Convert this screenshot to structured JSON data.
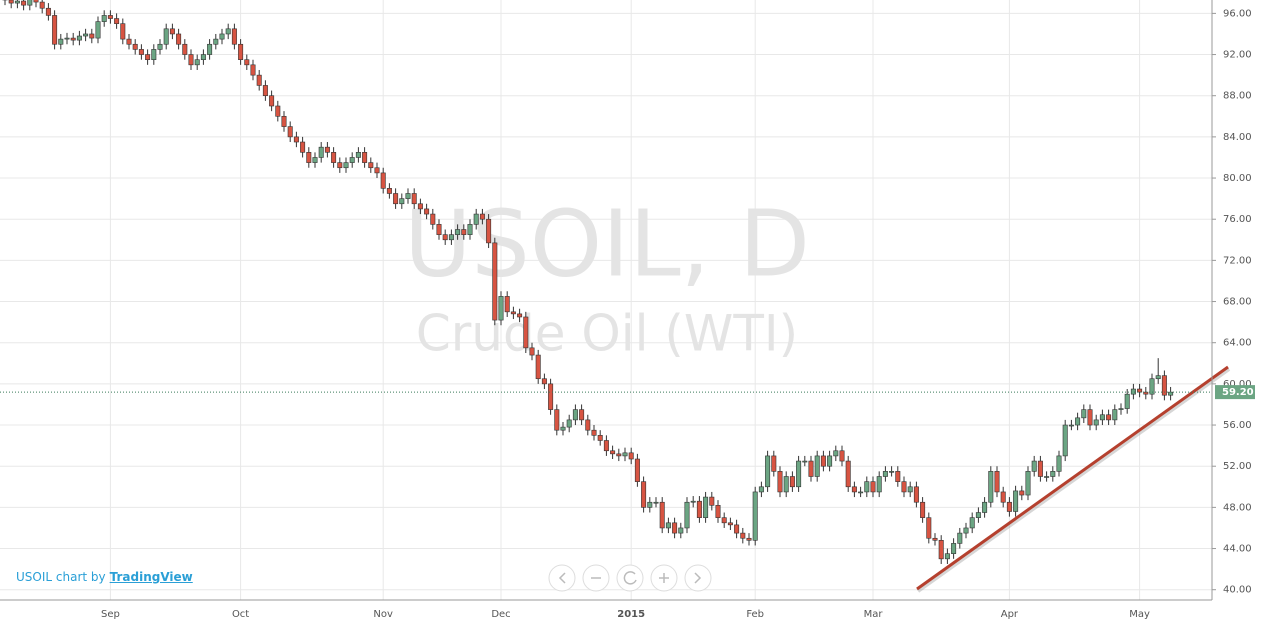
{
  "chart_data": {
    "type": "candlestick",
    "title": "USOIL, D",
    "subtitle": "Crude Oil (WTI)",
    "up_color": "#6ba583",
    "down_color": "#d75442",
    "grid": true,
    "ylim": [
      39,
      97.3
    ],
    "yticks": [
      {
        "value": 40,
        "label": "40.00"
      },
      {
        "value": 44,
        "label": "44.00"
      },
      {
        "value": 48,
        "label": "48.00"
      },
      {
        "value": 52,
        "label": "52.00"
      },
      {
        "value": 56,
        "label": "56.00"
      },
      {
        "value": 60,
        "label": "60.00"
      },
      {
        "value": 64,
        "label": "64.00"
      },
      {
        "value": 68,
        "label": "68.00"
      },
      {
        "value": 72,
        "label": "72.00"
      },
      {
        "value": 76,
        "label": "76.00"
      },
      {
        "value": 80,
        "label": "80.00"
      },
      {
        "value": 84,
        "label": "84.00"
      },
      {
        "value": 88,
        "label": "88.00"
      },
      {
        "value": 92,
        "label": "92.00"
      },
      {
        "value": 96,
        "label": "96.00"
      }
    ],
    "last_price": {
      "value": 59.2,
      "label": "59.20"
    },
    "categories": [
      null,
      null,
      null,
      null,
      null,
      null,
      null,
      null,
      null,
      null,
      null,
      null,
      null,
      null,
      null,
      null,
      null,
      "Sep",
      null,
      null,
      null,
      null,
      null,
      null,
      null,
      null,
      null,
      null,
      null,
      null,
      null,
      null,
      null,
      null,
      null,
      null,
      null,
      null,
      "Oct",
      null,
      null,
      null,
      null,
      null,
      null,
      null,
      null,
      null,
      null,
      null,
      null,
      null,
      null,
      null,
      null,
      null,
      null,
      null,
      null,
      null,
      null,
      "Nov",
      null,
      null,
      null,
      null,
      null,
      null,
      null,
      null,
      null,
      null,
      null,
      null,
      null,
      null,
      null,
      null,
      null,
      null,
      "Dec",
      null,
      null,
      null,
      null,
      null,
      null,
      null,
      null,
      null,
      null,
      null,
      null,
      null,
      null,
      null,
      null,
      null,
      null,
      null,
      null,
      "2015",
      null,
      null,
      null,
      null,
      null,
      null,
      null,
      null,
      null,
      null,
      null,
      null,
      null,
      null,
      null,
      null,
      null,
      null,
      null,
      "Feb",
      null,
      null,
      null,
      null,
      null,
      null,
      null,
      null,
      null,
      null,
      null,
      null,
      null,
      null,
      null,
      null,
      null,
      null,
      "Mar",
      null,
      null,
      null,
      null,
      null,
      null,
      null,
      null,
      null,
      null,
      null,
      null,
      null,
      null,
      null,
      null,
      null,
      null,
      null,
      null,
      null,
      "Apr",
      null,
      null,
      null,
      null,
      null,
      null,
      null,
      null,
      null,
      null,
      null,
      null,
      null,
      null,
      null,
      null,
      null,
      null,
      null,
      null,
      "May",
      null,
      null,
      null,
      null,
      null
    ],
    "open": [
      97.5,
      97.3,
      97,
      97.2,
      96.8,
      97.4,
      97.1,
      96.5,
      95.8,
      93,
      93.5,
      93.6,
      93.4,
      93.8,
      94,
      93.6,
      95.2,
      95.8,
      95.5,
      95,
      93.5,
      93,
      92.5,
      92,
      91.5,
      92.5,
      93,
      94.5,
      94,
      93,
      92,
      91,
      91.5,
      92,
      93,
      93.5,
      94,
      94.5,
      93,
      91.5,
      91,
      90,
      89,
      88,
      87,
      86,
      85,
      84,
      83.5,
      82.5,
      81.5,
      82,
      83,
      82.5,
      81.5,
      81,
      81.5,
      82,
      82.5,
      81.5,
      81,
      80.5,
      79,
      78.5,
      77.5,
      78,
      78.5,
      77.5,
      77,
      76.5,
      75.5,
      74.5,
      74,
      74.5,
      75,
      74.5,
      75.5,
      76.5,
      76,
      73.7,
      66.2,
      68.5,
      67,
      66.8,
      66.5,
      63.5,
      62.8,
      60.5,
      60,
      57.5,
      55.5,
      55.8,
      56.5,
      57.5,
      56.5,
      55.5,
      55,
      54.5,
      53.5,
      53.2,
      53,
      53.3,
      52.7,
      50.5,
      48,
      48.5,
      48.5,
      46,
      46.5,
      45.5,
      46,
      48.5,
      48.6,
      47,
      49,
      48.2,
      47,
      46.5,
      46.3,
      45.5,
      45,
      44.8,
      49.5,
      50,
      53,
      51.5,
      49.5,
      51,
      50,
      52.5,
      52.5,
      51,
      53,
      52,
      53,
      53.5,
      52.5,
      50,
      49.5,
      49.5,
      50.5,
      49.5,
      51,
      51.5,
      51.5,
      50.5,
      49.5,
      50,
      48.5,
      47,
      45,
      44.8,
      43,
      43.5,
      44.5,
      45.5,
      46,
      47,
      47.5,
      48.5,
      51.5,
      49.5,
      48.5,
      47.6,
      49.6,
      49.2,
      51.5,
      52.5,
      51,
      51,
      51.5,
      53,
      56,
      56,
      56.7,
      57.5,
      56,
      56.5,
      57,
      56.5,
      57.5,
      57.6,
      59,
      59.5,
      59.2,
      59,
      60.5,
      60.8,
      58.9
    ],
    "high": [
      98,
      97.8,
      97.7,
      97.7,
      97.9,
      97.9,
      97.6,
      97,
      96.3,
      94,
      94.1,
      94.1,
      94.3,
      94.5,
      94.5,
      95.7,
      96.3,
      96.3,
      96,
      95.5,
      94,
      93.5,
      93,
      92.5,
      93,
      93.5,
      95,
      95,
      94.5,
      93.5,
      92.5,
      92,
      92.5,
      93.5,
      94,
      94.5,
      95,
      95,
      93.5,
      92,
      91.5,
      90.5,
      89.5,
      88.5,
      87.5,
      86.5,
      85.5,
      84.5,
      84,
      83,
      82.5,
      83.5,
      83.5,
      83,
      82,
      82,
      82.5,
      83,
      83,
      82,
      81.5,
      81,
      79.5,
      79,
      78.5,
      79,
      79,
      78,
      77.5,
      77,
      76,
      75,
      75,
      75.5,
      75.5,
      76,
      77,
      77,
      76.5,
      74.2,
      69,
      69,
      67.5,
      67.3,
      67,
      64,
      63.3,
      61,
      60.5,
      58,
      56.3,
      57,
      58,
      58,
      57,
      56,
      55.5,
      55,
      54,
      53.7,
      53.8,
      53.8,
      53.2,
      51,
      49,
      49,
      49,
      47,
      47,
      46.5,
      49,
      49.1,
      49.1,
      49.5,
      49.5,
      48.7,
      47.5,
      47,
      46.8,
      46,
      45.5,
      50,
      50.5,
      53.5,
      53.5,
      52,
      51.5,
      51.5,
      53,
      53,
      53,
      53.5,
      53.5,
      53.5,
      54,
      54,
      53,
      50.5,
      50,
      51,
      51,
      51.5,
      52,
      52,
      52,
      51,
      50.5,
      50.5,
      49,
      47.5,
      45.5,
      45.3,
      44,
      45,
      46,
      46.5,
      47.5,
      48,
      49,
      52,
      52,
      50,
      49,
      50.1,
      50.1,
      52,
      53,
      53,
      51.5,
      52,
      53.5,
      56.5,
      56.5,
      57.2,
      58,
      58,
      57,
      57.5,
      57.5,
      58,
      58.1,
      59.5,
      60,
      60,
      59.7,
      61,
      62.5,
      61.3,
      59.7
    ],
    "low": [
      96.8,
      96.5,
      96.5,
      96.3,
      96.3,
      96.6,
      96,
      95.3,
      92.5,
      92.5,
      93,
      92.9,
      92.9,
      93.3,
      93.1,
      93.1,
      94.7,
      95,
      94.5,
      93,
      92.5,
      92,
      91.5,
      91,
      91,
      92,
      92.5,
      93.5,
      92.5,
      91.5,
      90.5,
      90.5,
      91,
      91.5,
      92.5,
      93,
      93.5,
      92.5,
      91,
      90.5,
      89.5,
      88.5,
      87.5,
      86.5,
      85.5,
      84.5,
      83.5,
      83,
      82,
      81,
      81,
      81.5,
      82,
      81,
      80.5,
      80.5,
      81,
      81.5,
      81,
      80.5,
      80,
      78.5,
      78,
      77,
      77,
      77.5,
      77,
      76.5,
      76,
      75,
      74,
      73.5,
      73.5,
      74,
      74,
      74,
      75,
      75.5,
      73.2,
      65.7,
      65.7,
      66.5,
      66.3,
      66,
      63,
      62.3,
      60,
      59.5,
      57,
      55,
      55,
      55.3,
      56,
      56,
      55,
      54.5,
      54,
      53,
      52.7,
      52.5,
      52.5,
      52.2,
      50,
      47.5,
      47.5,
      48,
      45.5,
      45.5,
      45,
      45,
      45.5,
      48,
      46.5,
      46.5,
      47.7,
      46.5,
      46,
      45.8,
      45,
      44.5,
      44.3,
      44.3,
      49,
      49.5,
      51,
      49,
      49,
      49.5,
      49.5,
      52,
      50.5,
      50.5,
      51.5,
      51.5,
      52.5,
      52,
      49.5,
      49,
      49,
      49,
      49,
      49,
      50.5,
      51,
      50,
      49,
      49,
      48,
      46.5,
      44.5,
      44.3,
      42.5,
      42.5,
      43,
      44,
      45,
      45.5,
      46.5,
      47,
      48,
      49,
      48,
      47.1,
      47.1,
      48.7,
      48.7,
      51,
      50.5,
      50.5,
      50.5,
      51,
      52.5,
      55.5,
      55.5,
      56.2,
      55.5,
      55.5,
      56,
      56,
      56,
      57,
      57.1,
      58.5,
      58.7,
      58.5,
      58.5,
      60,
      58.4,
      58.4
    ],
    "close": [
      97.3,
      97,
      97.2,
      96.8,
      97.4,
      97.1,
      96.5,
      95.8,
      93,
      93.5,
      93.6,
      93.4,
      93.8,
      94,
      93.6,
      95.2,
      95.8,
      95.5,
      95,
      93.5,
      93,
      92.5,
      92,
      91.5,
      92.5,
      93,
      94.5,
      94,
      93,
      92,
      91,
      91.5,
      92,
      93,
      93.5,
      94,
      94.5,
      93,
      91.5,
      91,
      90,
      89,
      88,
      87,
      86,
      85,
      84,
      83.5,
      82.5,
      81.5,
      82,
      83,
      82.5,
      81.5,
      81,
      81.5,
      82,
      82.5,
      81.5,
      81,
      80.5,
      79,
      78.5,
      77.5,
      78,
      78.5,
      77.5,
      77,
      76.5,
      75.5,
      74.5,
      74,
      74.5,
      75,
      74.5,
      75.5,
      76.5,
      76,
      73.7,
      66.2,
      68.5,
      67,
      66.8,
      66.5,
      63.5,
      62.8,
      60.5,
      60,
      57.5,
      55.5,
      55.8,
      56.5,
      57.5,
      56.5,
      55.5,
      55,
      54.5,
      53.5,
      53.2,
      53,
      53.3,
      52.7,
      50.5,
      48,
      48.5,
      48.5,
      46,
      46.5,
      45.5,
      46,
      48.5,
      48.6,
      47,
      49,
      48.2,
      47,
      46.5,
      46.3,
      45.5,
      45,
      44.8,
      49.5,
      50,
      53,
      51.5,
      49.5,
      51,
      50,
      52.5,
      52.5,
      51,
      53,
      52,
      53,
      53.5,
      52.5,
      50,
      49.5,
      49.5,
      50.5,
      49.5,
      51,
      51.5,
      51.5,
      50.5,
      49.5,
      50,
      48.5,
      47,
      45,
      44.8,
      43,
      43.5,
      44.5,
      45.5,
      46,
      47,
      47.5,
      48.5,
      51.5,
      49.5,
      48.5,
      47.6,
      49.6,
      49.2,
      51.5,
      52.5,
      51,
      51,
      51.5,
      53,
      56,
      56,
      56.7,
      57.5,
      56,
      56.5,
      57,
      56.5,
      57.5,
      57.6,
      59,
      59.5,
      59.2,
      59,
      60.5,
      60.8,
      58.9,
      59.2
    ]
  },
  "attribution": {
    "text": "USOIL chart by",
    "link": "TradingView"
  }
}
